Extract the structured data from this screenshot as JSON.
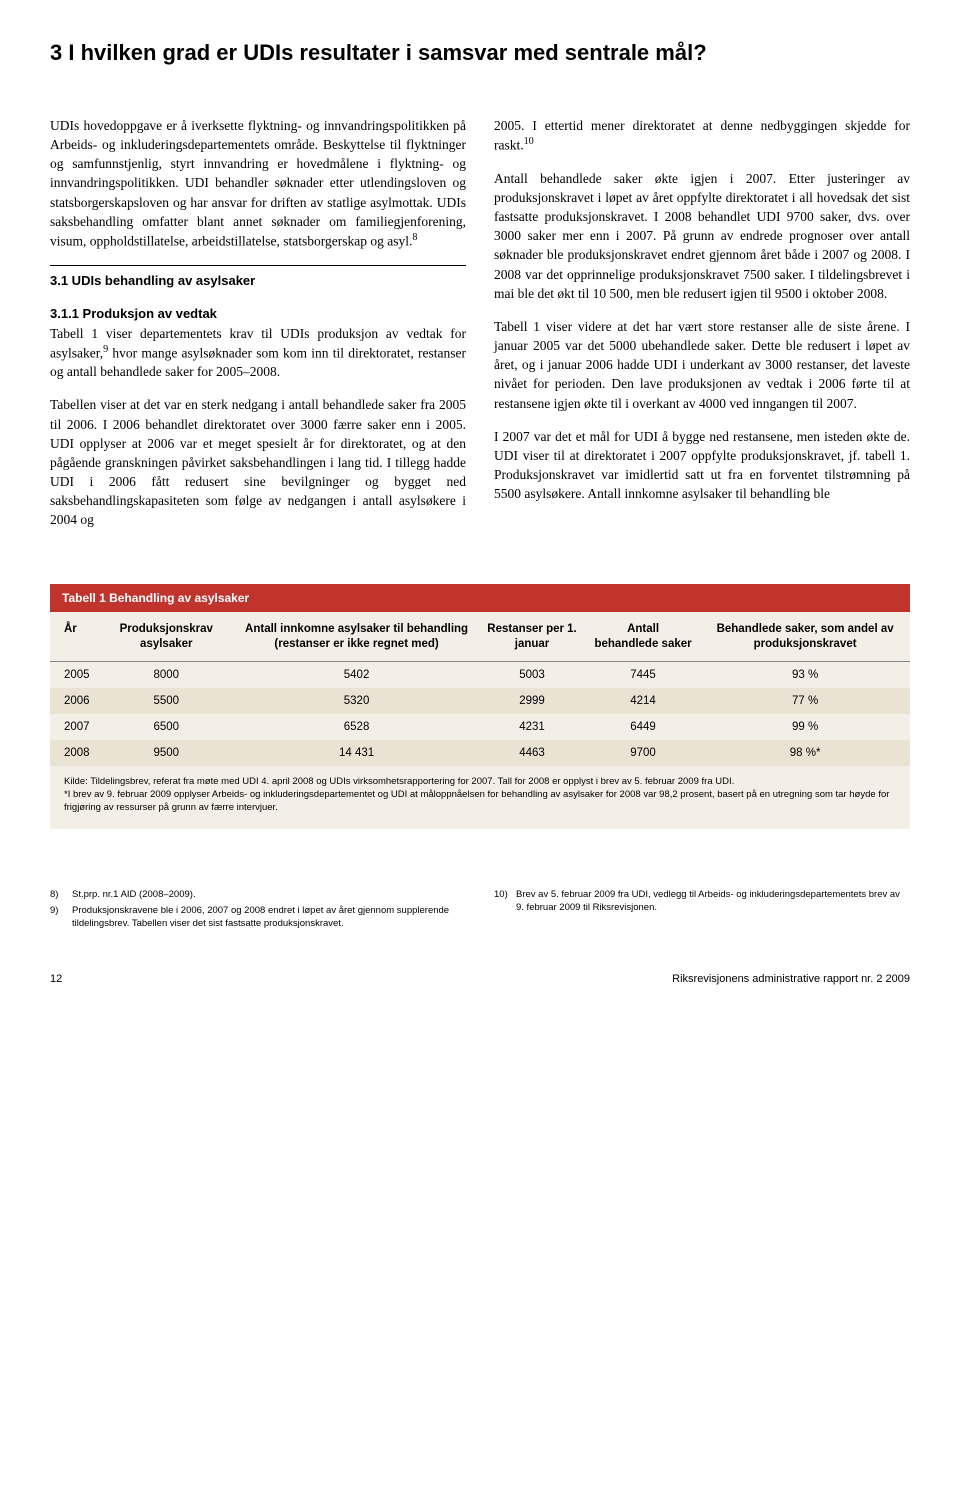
{
  "heading": "3 I hvilken grad er UDIs resultater i samsvar med sentrale mål?",
  "left_col": {
    "p1": "UDIs hovedoppgave er å iverksette flyktning- og innvandringspolitikken på Arbeids- og inkluderingsdepartementets område. Beskyttelse til flyktninger og samfunnstjenlig, styrt innvandring er hovedmålene i flyktning- og innvandringspolitikken. UDI behandler søknader etter utlendingsloven og statsborgerskapsloven og har ansvar for driften av statlige asylmottak. UDIs saksbehandling omfatter blant annet søknader om familiegjenforening, visum, oppholdstillatelse, arbeidstillatelse, statsborgerskap og asyl.",
    "p1_sup": "8",
    "sub1": "3.1 UDIs behandling av asylsaker",
    "sub11": "3.1.1 Produksjon av vedtak",
    "p2a": "Tabell 1 viser departementets krav til UDIs produksjon av vedtak for asylsaker,",
    "p2_sup": "9",
    "p2b": " hvor mange asylsøknader som kom inn til direktoratet, restanser og antall behandlede saker for 2005–2008.",
    "p3": "Tabellen viser at det var en sterk nedgang i antall behandlede saker fra 2005 til 2006. I 2006 behandlet direktoratet over 3000 færre saker enn i 2005. UDI opplyser at 2006 var et meget spesielt år for direktoratet, og at den pågående granskningen påvirket saksbehandlingen i lang tid. I tillegg hadde UDI i 2006 fått redusert sine bevilgninger og bygget ned saksbehandlingskapasiteten som følge av nedgangen i antall asylsøkere i 2004 og"
  },
  "right_col": {
    "p1a": "2005. I ettertid mener direktoratet at denne nedbyggingen skjedde for raskt.",
    "p1_sup": "10",
    "p2": "Antall behandlede saker økte igjen i 2007. Etter justeringer av produksjonskravet i løpet av året oppfylte direktoratet i all hovedsak det sist fastsatte produksjonskravet. I 2008 behandlet UDI 9700 saker, dvs. over 3000 saker mer enn i 2007. På grunn av endrede prognoser over antall søknader ble produksjonskravet endret gjennom året både i 2007 og 2008. I 2008 var det opprinnelige produksjonskravet 7500 saker. I tildelingsbrevet i mai ble det økt til 10 500, men ble redusert igjen til 9500 i oktober 2008.",
    "p3": "Tabell 1 viser videre at det har vært store restanser alle de siste årene. I januar 2005 var det 5000 ubehandlede saker. Dette ble redusert i løpet av året, og i januar 2006 hadde UDI i underkant av 3000 restanser, det laveste nivået for perioden. Den lave produksjonen av vedtak i 2006 førte til at restansene igjen økte til i overkant av 4000 ved inngangen til 2007.",
    "p4": "I 2007 var det et mål for UDI å bygge ned restansene, men isteden økte de. UDI viser til at direktoratet i 2007 oppfylte produksjonskravet, jf. tabell 1. Produksjonskravet var imidlertid satt ut fra en forventet tilstrømning på 5500 asylsøkere. Antall innkomne asylsaker til behandling ble"
  },
  "table": {
    "title": "Tabell 1 Behandling av asylsaker",
    "columns": [
      "År",
      "Produksjonskrav asylsaker",
      "Antall innkomne asylsaker til behandling (restanser er ikke regnet med)",
      "Restanser per 1. januar",
      "Antall behandlede saker",
      "Behandlede saker, som andel av produksjonskravet"
    ],
    "rows": [
      [
        "2005",
        "8000",
        "5402",
        "5003",
        "7445",
        "93 %"
      ],
      [
        "2006",
        "5500",
        "5320",
        "2999",
        "4214",
        "77 %"
      ],
      [
        "2007",
        "6500",
        "6528",
        "4231",
        "6449",
        "99 %"
      ],
      [
        "2008",
        "9500",
        "14 431",
        "4463",
        "9700",
        "98 %*"
      ]
    ],
    "note1": "Kilde: Tildelingsbrev, referat fra møte med UDI 4. april 2008 og UDIs virksomhetsrapportering for 2007. Tall for 2008 er opplyst i brev av 5. februar 2009 fra UDI.",
    "note2": "*I brev av 9. februar 2009 opplyser Arbeids- og inkluderingsdepartementet og UDI at måloppnåelsen for behandling av asylsaker for 2008 var 98,2 prosent, basert på en utregning som tar høyde for frigjøring av ressurser på grunn av færre intervjuer."
  },
  "footnotes": {
    "left": [
      {
        "n": "8)",
        "t": "St.prp. nr.1 AID (2008–2009)."
      },
      {
        "n": "9)",
        "t": "Produksjonskravene ble i 2006, 2007 og 2008 endret i løpet av året gjennom supplerende tildelingsbrev. Tabellen viser det sist fastsatte produksjonskravet."
      }
    ],
    "right": [
      {
        "n": "10)",
        "t": "Brev av 5. februar 2009 fra UDI, vedlegg til Arbeids- og inkluderingsdepartementets brev av 9. februar 2009 til Riksrevisjonen."
      }
    ]
  },
  "footer": {
    "page": "12",
    "source": "Riksrevisjonens administrative rapport nr. 2 2009"
  },
  "styling": {
    "title_bar_bg": "#c1342e",
    "table_bg": "#f4efe6",
    "alt_row_bg": "#eae2d3"
  }
}
